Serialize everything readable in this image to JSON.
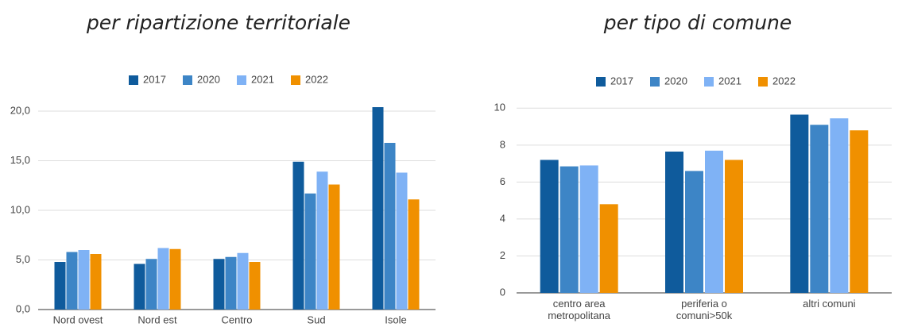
{
  "chart_data": [
    {
      "type": "bar",
      "title": "per ripartizione territoriale",
      "categories": [
        "Nord ovest",
        "Nord est",
        "Centro",
        "Sud",
        "Isole"
      ],
      "series": [
        {
          "name": "2017",
          "color": "#0f5b9c",
          "values": [
            4.8,
            4.6,
            5.1,
            14.9,
            20.4
          ]
        },
        {
          "name": "2020",
          "color": "#3d85c6",
          "values": [
            5.8,
            5.1,
            5.3,
            11.7,
            16.8
          ]
        },
        {
          "name": "2021",
          "color": "#7fb2f5",
          "values": [
            6.0,
            6.2,
            5.7,
            13.9,
            13.8
          ]
        },
        {
          "name": "2022",
          "color": "#f09000",
          "values": [
            5.6,
            6.1,
            4.8,
            12.6,
            11.1
          ]
        }
      ],
      "ylim": [
        0,
        21.6
      ],
      "yticks": [
        {
          "value": 0,
          "label": "0,0"
        },
        {
          "value": 5,
          "label": "5,0"
        },
        {
          "value": 10,
          "label": "10,0"
        },
        {
          "value": 15,
          "label": "15,0"
        },
        {
          "value": 20,
          "label": "20,0"
        }
      ],
      "grid": true,
      "legend": "top"
    },
    {
      "type": "bar",
      "title": "per tipo di comune",
      "categories": [
        "centro area metropolitana",
        "periferia o comuni>50k",
        "altri comuni"
      ],
      "series": [
        {
          "name": "2017",
          "color": "#0f5b9c",
          "values": [
            7.2,
            7.65,
            9.65
          ]
        },
        {
          "name": "2020",
          "color": "#3d85c6",
          "values": [
            6.85,
            6.6,
            9.1
          ]
        },
        {
          "name": "2021",
          "color": "#7fb2f5",
          "values": [
            6.9,
            7.7,
            9.45
          ]
        },
        {
          "name": "2022",
          "color": "#f09000",
          "values": [
            4.8,
            7.2,
            8.8
          ]
        }
      ],
      "ylim": [
        0,
        10.4
      ],
      "yticks": [
        0,
        2,
        4,
        6,
        8,
        10
      ],
      "grid": true,
      "legend": "top"
    }
  ]
}
